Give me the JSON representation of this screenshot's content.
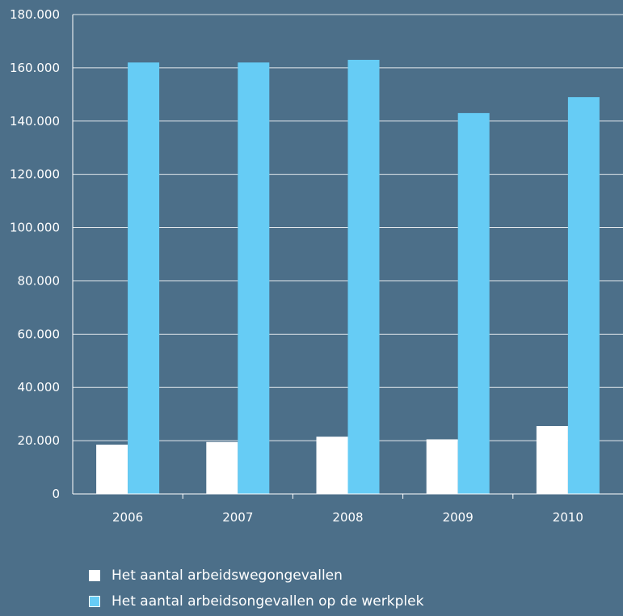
{
  "chart_data": {
    "type": "bar",
    "categories": [
      "2006",
      "2007",
      "2008",
      "2009",
      "2010"
    ],
    "series": [
      {
        "name": "Het aantal arbeidswegongevallen",
        "color": "#ffffff",
        "values": [
          18500,
          19500,
          21500,
          20500,
          25500
        ]
      },
      {
        "name": "Het aantal arbeidsongevallen op de werkplek",
        "color": "#66ccf5",
        "values": [
          162000,
          162000,
          163000,
          143000,
          149000
        ]
      }
    ],
    "ylim": [
      0,
      180000
    ],
    "yticks": [
      "0",
      "20.000",
      "40.000",
      "60.000",
      "80.000",
      "100.000",
      "120.000",
      "140.000",
      "160.000",
      "180.000"
    ],
    "grid": true,
    "legend_position": "bottom-left",
    "background": "#4c6f89"
  }
}
